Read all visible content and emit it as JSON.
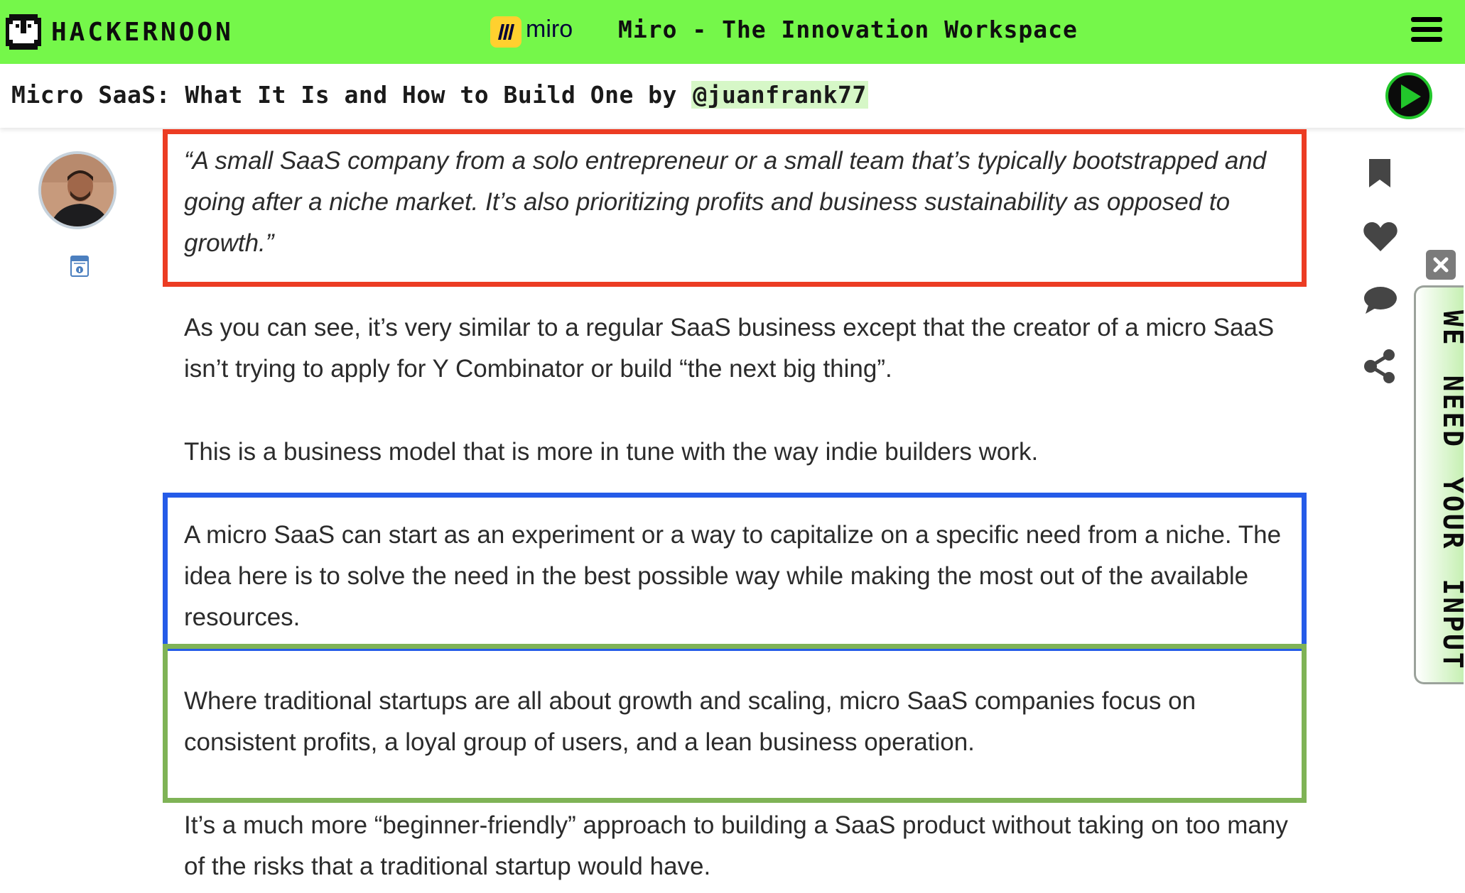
{
  "banner": {
    "logo_text": "HACKERNOON",
    "sponsor_name": "miro",
    "title": "Miro - The Innovation Workspace"
  },
  "story": {
    "title_prefix": "Micro SaaS: What It Is and How to Build One by ",
    "author_handle": "@juanfrank77"
  },
  "article": {
    "quote": "“A small SaaS company from a solo entrepreneur or a small team that’s typically bootstrapped and going after a niche market. It’s also prioritizing profits and business sustainability as opposed to growth.”",
    "p1": "As you can see, it’s very similar to a regular SaaS business except that the creator of a micro SaaS isn’t trying to apply for Y Combinator or build “the next big thing”.",
    "p2": "This is a business model that is more in tune with the way indie builders work.",
    "p3": "A micro SaaS can start as an experiment or a way to capitalize on a specific need from a niche. The idea here is to solve the need in the best possible way while making the most out of the available resources.",
    "p4": "Where traditional startups are all about growth and scaling, micro SaaS companies focus on consistent profits, a loyal group of users, and a lean business operation.",
    "p5": "It’s a much more “beginner-friendly” approach to building a SaaS product without taking on too many of the risks that a traditional startup would have."
  },
  "highlight_colors": {
    "red": "#ec3c23",
    "blue": "#255be8",
    "green": "#7fb356",
    "banner": "#75f74a"
  },
  "actions": {
    "icons": [
      "bookmark-icon",
      "heart-icon",
      "comment-icon",
      "share-icon",
      "close-icon",
      "play-icon",
      "menu-icon"
    ]
  },
  "feedback": {
    "label": "WE NEED YOUR INPUT"
  }
}
